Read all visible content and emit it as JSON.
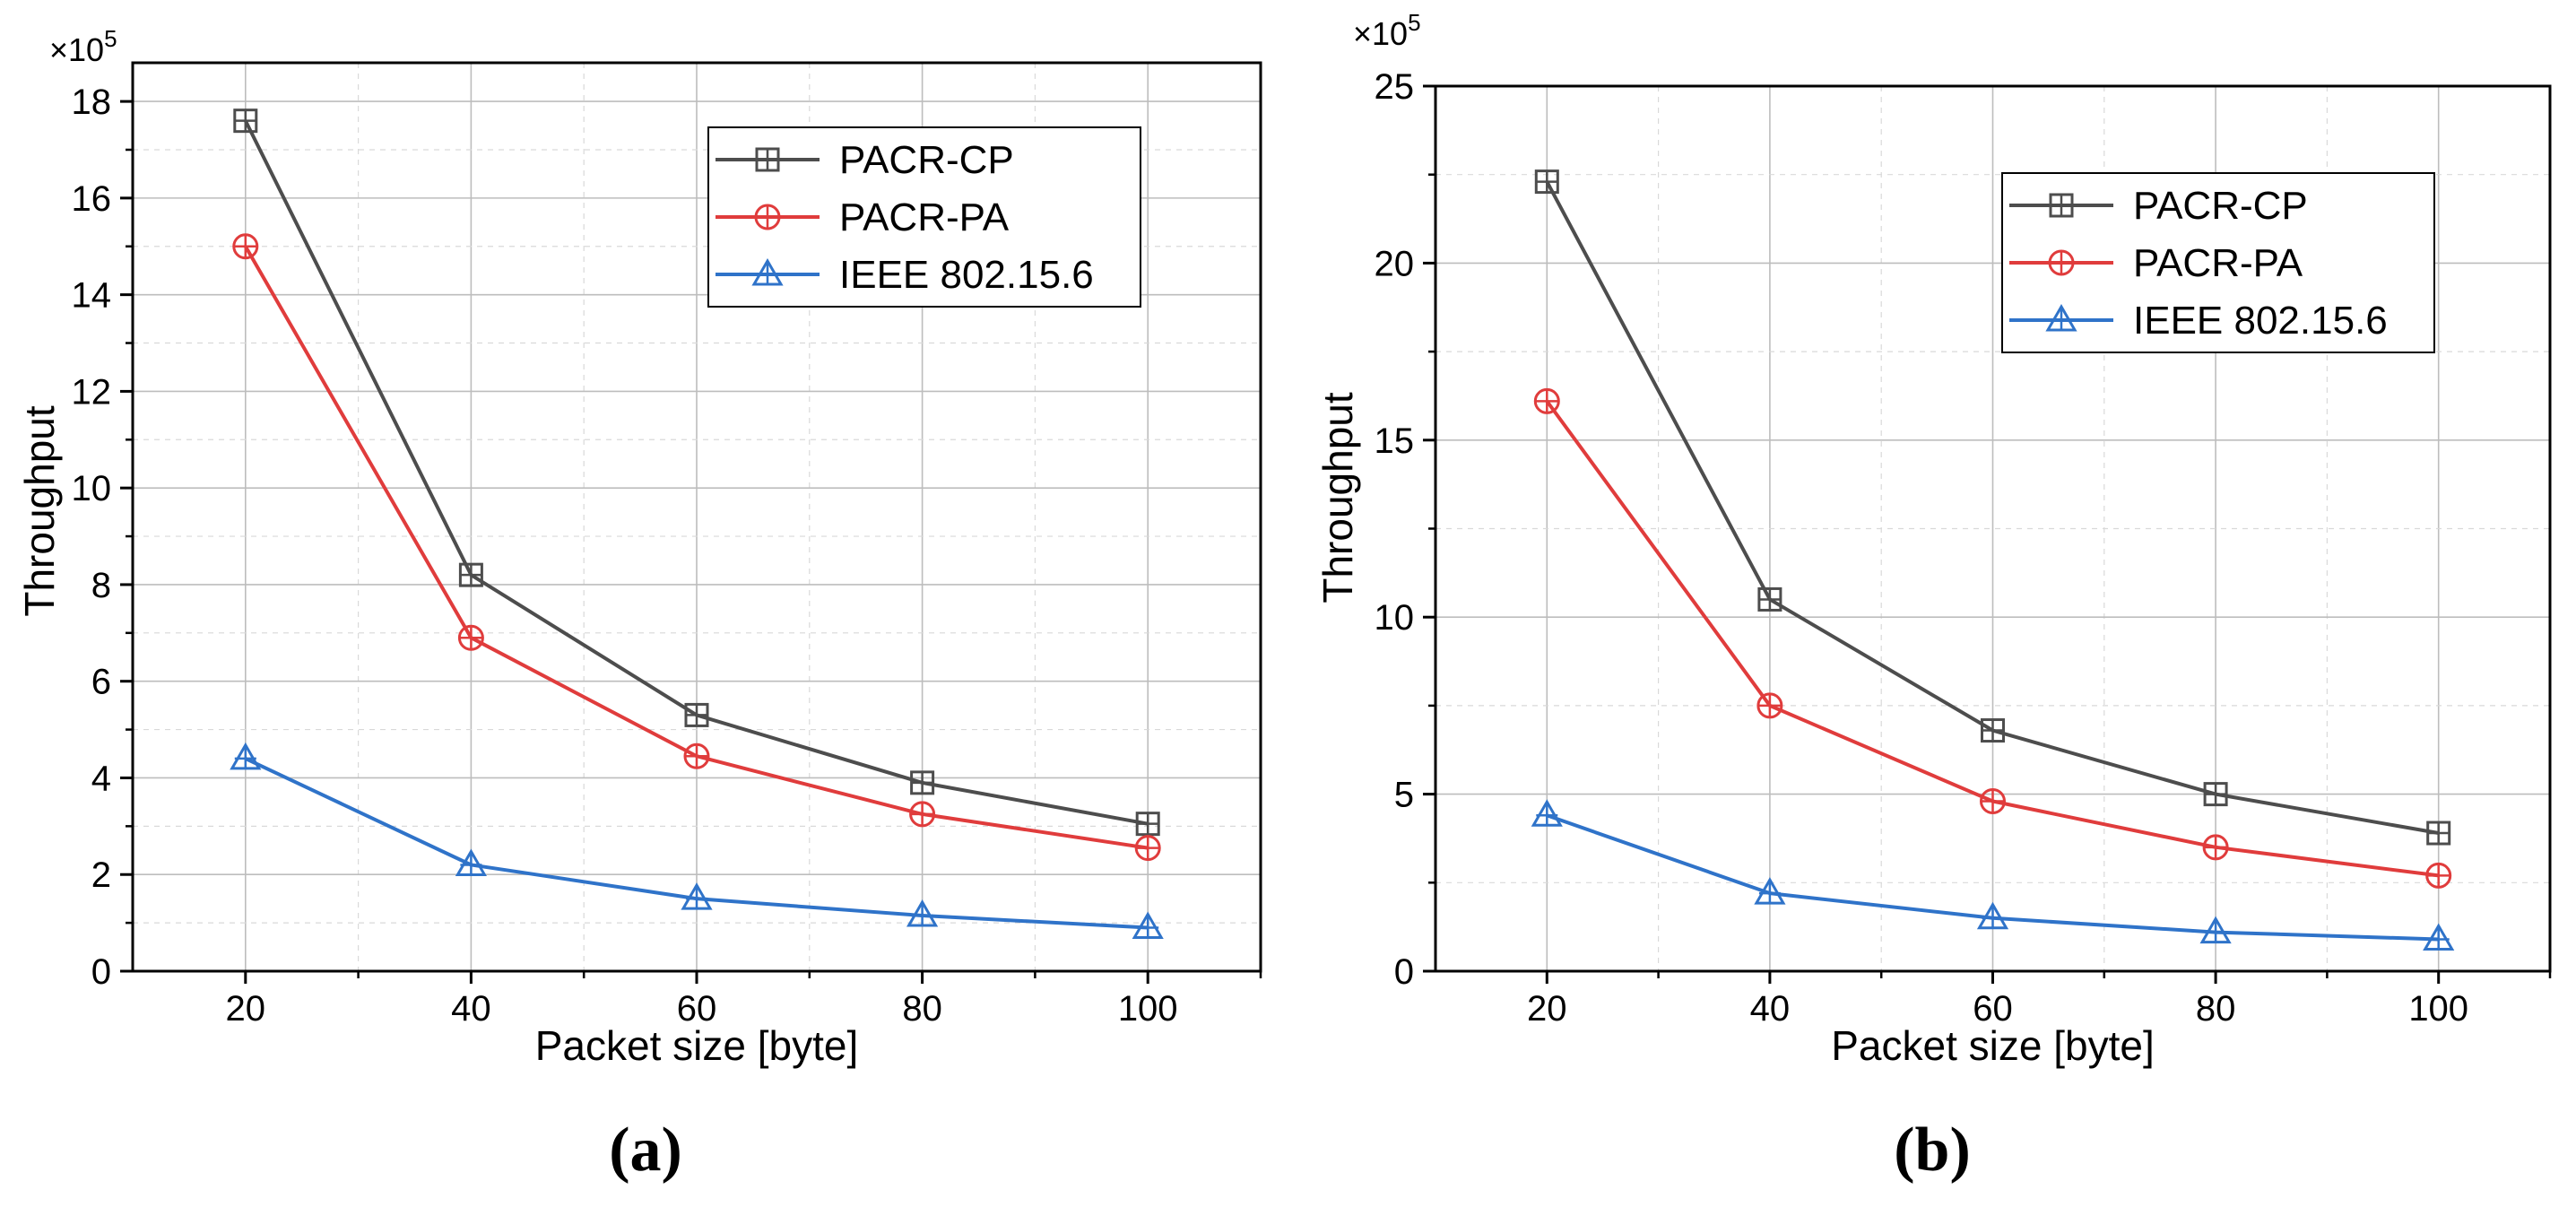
{
  "chart_data": [
    {
      "type": "line",
      "panel_label": "(a)",
      "title": "",
      "xlabel": "Packet size [byte]",
      "ylabel": "Throughput",
      "y_multiplier": "×10",
      "y_exponent": "5",
      "x": [
        20,
        40,
        60,
        80,
        100
      ],
      "xlim": [
        10,
        110
      ],
      "ylim": [
        0,
        18.8
      ],
      "xticks": [
        20,
        40,
        60,
        80,
        100
      ],
      "xtick_labels": [
        "20",
        "40",
        "60",
        "80",
        "100"
      ],
      "yticks": [
        0,
        2,
        4,
        6,
        8,
        10,
        12,
        14,
        16,
        18
      ],
      "ytick_labels": [
        "0",
        "2",
        "4",
        "6",
        "8",
        "10",
        "12",
        "14",
        "16",
        "18"
      ],
      "grid": true,
      "legend_position": "top-right",
      "series": [
        {
          "name": "PACR-CP",
          "color": "#4d4d4d",
          "marker": "square-plus",
          "values": [
            17.6,
            8.2,
            5.3,
            3.9,
            3.05
          ]
        },
        {
          "name": "PACR-PA",
          "color": "#e03c3c",
          "marker": "circle-plus",
          "values": [
            15.0,
            6.9,
            4.45,
            3.25,
            2.55
          ]
        },
        {
          "name": "IEEE 802.15.6",
          "color": "#2f73c9",
          "marker": "triangle-plus",
          "values": [
            4.4,
            2.2,
            1.5,
            1.15,
            0.9
          ]
        }
      ]
    },
    {
      "type": "line",
      "panel_label": "(b)",
      "title": "",
      "xlabel": "Packet size [byte]",
      "ylabel": "Throughput",
      "y_multiplier": "×10",
      "y_exponent": "5",
      "x": [
        20,
        40,
        60,
        80,
        100
      ],
      "xlim": [
        10,
        110
      ],
      "ylim": [
        0,
        25
      ],
      "xticks": [
        20,
        40,
        60,
        80,
        100
      ],
      "xtick_labels": [
        "20",
        "40",
        "60",
        "80",
        "100"
      ],
      "yticks": [
        0,
        5,
        10,
        15,
        20,
        25
      ],
      "ytick_labels": [
        "0",
        "5",
        "10",
        "15",
        "20",
        "25"
      ],
      "grid": true,
      "legend_position": "top-right",
      "series": [
        {
          "name": "PACR-CP",
          "color": "#4d4d4d",
          "marker": "square-plus",
          "values": [
            22.3,
            10.5,
            6.8,
            5.0,
            3.9
          ]
        },
        {
          "name": "PACR-PA",
          "color": "#e03c3c",
          "marker": "circle-plus",
          "values": [
            16.1,
            7.5,
            4.8,
            3.5,
            2.7
          ]
        },
        {
          "name": "IEEE 802.15.6",
          "color": "#2f73c9",
          "marker": "triangle-plus",
          "values": [
            4.4,
            2.2,
            1.5,
            1.1,
            0.9
          ]
        }
      ]
    }
  ]
}
